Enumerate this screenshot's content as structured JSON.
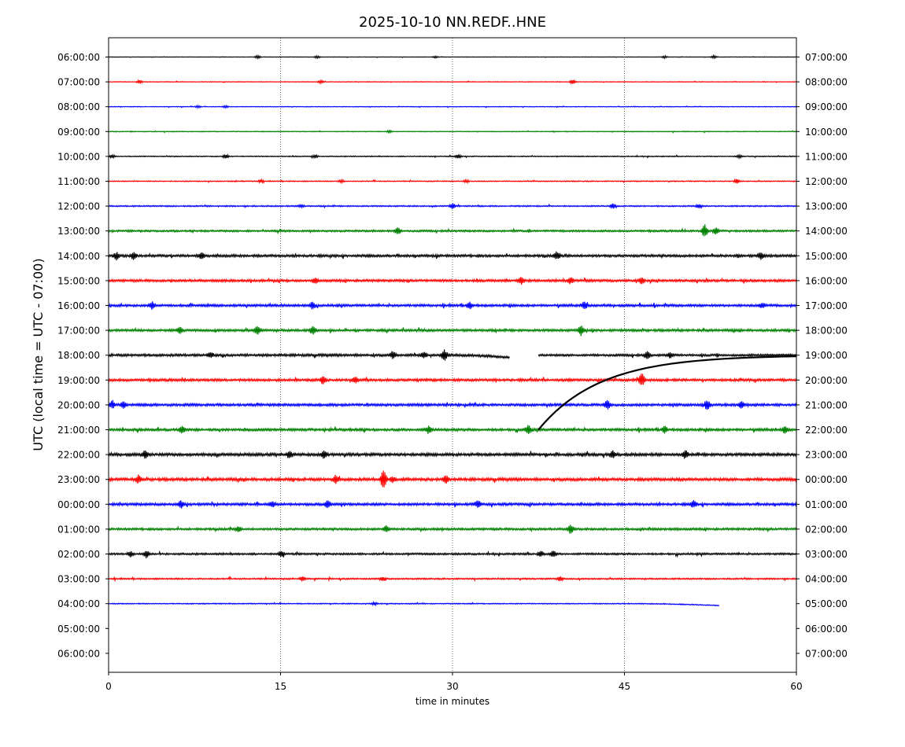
{
  "chart_data": {
    "type": "line",
    "title": "2025-10-10 NN.REDF..HNE",
    "xlabel": "time in minutes",
    "ylabel": "UTC (local time = UTC - 07:00)",
    "xlim": [
      0,
      60
    ],
    "x_ticks": [
      0,
      15,
      30,
      45,
      60
    ],
    "vertical_gridlines_at": [
      15,
      30,
      45
    ],
    "left_tick_labels": [
      "06:00:00",
      "07:00:00",
      "08:00:00",
      "09:00:00",
      "10:00:00",
      "11:00:00",
      "12:00:00",
      "13:00:00",
      "14:00:00",
      "15:00:00",
      "16:00:00",
      "17:00:00",
      "18:00:00",
      "19:00:00",
      "20:00:00",
      "21:00:00",
      "22:00:00",
      "23:00:00",
      "00:00:00",
      "01:00:00",
      "02:00:00",
      "03:00:00",
      "04:00:00",
      "05:00:00",
      "06:00:00"
    ],
    "right_tick_labels": [
      "07:00:00",
      "08:00:00",
      "09:00:00",
      "10:00:00",
      "11:00:00",
      "12:00:00",
      "13:00:00",
      "14:00:00",
      "15:00:00",
      "16:00:00",
      "17:00:00",
      "18:00:00",
      "19:00:00",
      "20:00:00",
      "21:00:00",
      "22:00:00",
      "23:00:00",
      "00:00:00",
      "01:00:00",
      "02:00:00",
      "03:00:00",
      "04:00:00",
      "05:00:00",
      "06:00:00",
      "07:00:00"
    ],
    "trace_colors": [
      "#000000",
      "#ff0000",
      "#0000ff",
      "#008000"
    ],
    "series": [
      {
        "row": 0,
        "start": 0,
        "end": 60,
        "noise": 0.3,
        "events": [
          [
            13,
            2
          ],
          [
            18.2,
            1.5
          ],
          [
            28.5,
            1.2
          ],
          [
            48.5,
            1.5
          ],
          [
            52.8,
            2
          ]
        ]
      },
      {
        "row": 1,
        "start": 0,
        "end": 60,
        "noise": 0.4,
        "events": [
          [
            2.7,
            2
          ],
          [
            18.5,
            2
          ],
          [
            40.5,
            3
          ]
        ]
      },
      {
        "row": 2,
        "start": 0,
        "end": 60,
        "noise": 0.4,
        "events": [
          [
            7.8,
            1.5
          ],
          [
            10.2,
            1.5
          ]
        ]
      },
      {
        "row": 3,
        "start": 0,
        "end": 60,
        "noise": 0.5,
        "events": [
          [
            24.5,
            1.5
          ]
        ]
      },
      {
        "row": 4,
        "start": 0,
        "end": 60,
        "noise": 0.6,
        "events": [
          [
            0.3,
            2
          ],
          [
            10.2,
            2.5
          ],
          [
            18,
            2
          ],
          [
            30.5,
            2.5
          ],
          [
            55,
            2
          ]
        ]
      },
      {
        "row": 5,
        "start": 0,
        "end": 60,
        "noise": 0.6,
        "events": [
          [
            13.3,
            2
          ],
          [
            20.3,
            2
          ],
          [
            31.2,
            2
          ],
          [
            54.8,
            3
          ]
        ]
      },
      {
        "row": 6,
        "start": 0,
        "end": 60,
        "noise": 0.8,
        "events": [
          [
            16.8,
            2
          ],
          [
            30,
            3.5
          ],
          [
            44,
            3
          ],
          [
            51.5,
            3
          ]
        ]
      },
      {
        "row": 7,
        "start": 0,
        "end": 60,
        "noise": 1.2,
        "events": [
          [
            25.2,
            5
          ],
          [
            52,
            9
          ],
          [
            53,
            5
          ]
        ]
      },
      {
        "row": 8,
        "start": 0,
        "end": 60,
        "noise": 1.6,
        "events": [
          [
            0.7,
            5
          ],
          [
            2.2,
            5
          ],
          [
            8.1,
            4.5
          ],
          [
            39.1,
            5
          ],
          [
            56.9,
            4.5
          ]
        ]
      },
      {
        "row": 9,
        "start": 0,
        "end": 60,
        "noise": 1.5,
        "events": [
          [
            18,
            3.5
          ],
          [
            36,
            5
          ],
          [
            40.3,
            4.5
          ],
          [
            46.5,
            4
          ]
        ]
      },
      {
        "row": 10,
        "start": 0,
        "end": 60,
        "noise": 1.5,
        "events": [
          [
            3.8,
            4.5
          ],
          [
            17.8,
            4.5
          ],
          [
            31.5,
            4.5
          ],
          [
            41.5,
            5
          ],
          [
            57,
            4
          ]
        ]
      },
      {
        "row": 11,
        "start": 0,
        "end": 60,
        "noise": 1.5,
        "events": [
          [
            6.2,
            4
          ],
          [
            13,
            6
          ],
          [
            17.8,
            5.5
          ],
          [
            41.2,
            6
          ]
        ]
      },
      {
        "row": 12,
        "start": 0,
        "end": 35,
        "noise": 1.6,
        "events": [
          [
            8.9,
            4
          ],
          [
            24.8,
            5
          ],
          [
            27.5,
            4.5
          ],
          [
            29.3,
            7
          ]
        ],
        "end_offset": 3
      },
      {
        "row": 12,
        "start": 37.5,
        "end": 60,
        "noise": 1.4,
        "events": [
          [
            47,
            5.5
          ],
          [
            49,
            3.5
          ]
        ],
        "drift_start": 60,
        "drift_tau": 3
      },
      {
        "row": 13,
        "start": 0,
        "end": 60,
        "noise": 1.6,
        "events": [
          [
            18.7,
            5
          ],
          [
            21.5,
            4
          ],
          [
            46.5,
            9
          ]
        ]
      },
      {
        "row": 14,
        "start": 0,
        "end": 60,
        "noise": 1.6,
        "events": [
          [
            0.3,
            5
          ],
          [
            1.3,
            5
          ],
          [
            43.5,
            6
          ],
          [
            52.2,
            7
          ],
          [
            55.2,
            5
          ]
        ]
      },
      {
        "row": 15,
        "start": 0,
        "end": 60,
        "noise": 1.6,
        "events": [
          [
            6.4,
            5
          ],
          [
            27.9,
            5
          ],
          [
            36.6,
            7
          ],
          [
            48.5,
            5
          ],
          [
            59,
            5
          ]
        ]
      },
      {
        "row": 16,
        "start": 0,
        "end": 60,
        "noise": 1.8,
        "events": [
          [
            3.2,
            5
          ],
          [
            15.8,
            5
          ],
          [
            18.8,
            5.5
          ],
          [
            44,
            5
          ],
          [
            50.3,
            5
          ]
        ]
      },
      {
        "row": 17,
        "start": 0,
        "end": 60,
        "noise": 1.8,
        "events": [
          [
            2.6,
            5
          ],
          [
            19.8,
            5
          ],
          [
            24,
            15
          ],
          [
            24.8,
            4
          ],
          [
            29.4,
            5
          ]
        ]
      },
      {
        "row": 18,
        "start": 0,
        "end": 60,
        "noise": 1.6,
        "events": [
          [
            6.3,
            5
          ],
          [
            14.3,
            4
          ],
          [
            19.1,
            5
          ],
          [
            32.2,
            5
          ],
          [
            51,
            5
          ]
        ]
      },
      {
        "row": 19,
        "start": 0,
        "end": 60,
        "noise": 1.4,
        "events": [
          [
            11.3,
            4
          ],
          [
            24.2,
            4
          ],
          [
            40.3,
            6
          ]
        ]
      },
      {
        "row": 20,
        "start": 0,
        "end": 60,
        "noise": 1.2,
        "events": [
          [
            1.9,
            4
          ],
          [
            3.3,
            5
          ],
          [
            15.1,
            4
          ],
          [
            37.7,
            4
          ],
          [
            38.8,
            4.5
          ]
        ]
      },
      {
        "row": 21,
        "start": 0,
        "end": 60,
        "noise": 0.9,
        "events": [
          [
            16.9,
            3
          ],
          [
            23.9,
            3
          ],
          [
            39.4,
            3
          ]
        ]
      },
      {
        "row": 22,
        "start": 0,
        "end": 53.3,
        "noise": 0.6,
        "events": [
          [
            23.2,
            2
          ]
        ],
        "end_offset": 2.5
      }
    ],
    "gap_connector": {
      "x_from": 37.5,
      "row_from": 15,
      "x_to": 60,
      "row_to": 12
    }
  }
}
